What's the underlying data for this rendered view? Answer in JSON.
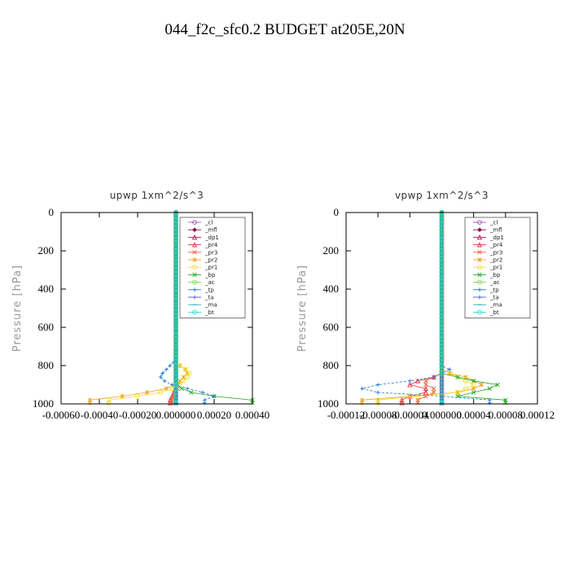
{
  "title": "044_f2c_sfc0.2  BUDGET at205E,20N",
  "legend_labels": [
    "_cl",
    "_mfl",
    "_dp1",
    "_pr4",
    "_pr3",
    "_pr2",
    "_pr1",
    "_bp",
    "_ac",
    "_tp",
    "_ta",
    "_ma",
    "_bt"
  ],
  "series_colors": [
    "#9b59b6",
    "#8b0a50",
    "#b0185a",
    "#e03040",
    "#e8603c",
    "#f0a020",
    "#f0e020",
    "#22aa22",
    "#66dd44",
    "#2277cc",
    "#4455dd",
    "#22aacc",
    "#22dddd"
  ],
  "chart_data": [
    {
      "type": "line",
      "title": "upwp   1xm^2/s^3",
      "ylabel": "Pressure [hPa]",
      "xlabel": "",
      "xlim": [
        -0.0006,
        0.0004
      ],
      "ylim": [
        1000,
        0
      ],
      "xticks": [
        "-0.00060",
        "-0.00040",
        "-0.00020",
        "0.000000",
        "0.00020",
        "0.00040"
      ],
      "yticks": [
        "0",
        "200",
        "400",
        "600",
        "800",
        "1000"
      ],
      "grid": false,
      "legend_position": "top-right",
      "pressure": [
        980,
        960,
        940,
        920,
        900,
        880,
        860,
        840,
        820,
        800,
        780,
        760
      ],
      "series": [
        {
          "name": "_cl",
          "values": [
            0,
            0,
            0,
            0,
            0,
            0,
            0,
            0,
            0,
            0,
            0,
            0
          ]
        },
        {
          "name": "_mfl",
          "values": [
            0,
            0,
            0,
            0,
            0,
            0,
            0,
            0,
            0,
            0,
            0,
            0
          ]
        },
        {
          "name": "_dp1",
          "values": [
            0,
            0,
            0,
            0,
            0,
            0,
            0,
            0,
            0,
            0,
            0,
            0
          ]
        },
        {
          "name": "_pr4",
          "values": [
            -3e-05,
            -2e-05,
            -1e-05,
            0,
            0,
            0,
            0,
            0,
            0,
            0,
            0,
            0
          ]
        },
        {
          "name": "_pr3",
          "values": [
            -2e-05,
            -1e-05,
            -1e-05,
            1e-05,
            0,
            0,
            0,
            0,
            0,
            0,
            0,
            0
          ]
        },
        {
          "name": "_pr2",
          "values": [
            -0.00045,
            -0.00028,
            -0.00015,
            -5e-05,
            0,
            2e-05,
            4e-05,
            6e-05,
            5e-05,
            2e-05,
            0,
            0
          ]
        },
        {
          "name": "_pr1",
          "values": [
            -0.00035,
            -0.0002,
            -8e-05,
            -2e-05,
            2e-05,
            4e-05,
            6e-05,
            7e-05,
            5e-05,
            2e-05,
            0,
            0
          ]
        },
        {
          "name": "_bp",
          "values": [
            0.0004,
            0.0002,
            8e-05,
            3e-05,
            1e-05,
            0,
            0,
            0,
            0,
            0,
            0,
            0
          ]
        },
        {
          "name": "_ac",
          "values": [
            0,
            0,
            0,
            0,
            0,
            0,
            0,
            0,
            0,
            0,
            0,
            0
          ]
        },
        {
          "name": "_tp",
          "values": [
            0.00015,
            0.0002,
            0.00014,
            6e-05,
            -2e-05,
            -6e-05,
            -8e-05,
            -7e-05,
            -5e-05,
            -3e-05,
            -1e-05,
            0
          ]
        },
        {
          "name": "_ta",
          "values": [
            0,
            0,
            0,
            0,
            0,
            0,
            0,
            0,
            0,
            0,
            0,
            0
          ]
        },
        {
          "name": "_ma",
          "values": [
            0,
            0,
            0,
            0,
            0,
            0,
            0,
            0,
            0,
            0,
            0,
            0
          ]
        },
        {
          "name": "_bt",
          "values": [
            0,
            0,
            0,
            0,
            0,
            0,
            0,
            0,
            0,
            0,
            0,
            0
          ]
        }
      ]
    },
    {
      "type": "line",
      "title": "vpwp   1xm^2/s^3",
      "ylabel": "Pressure [hPa]",
      "xlabel": "",
      "xlim": [
        -0.00012,
        0.00012
      ],
      "ylim": [
        1000,
        0
      ],
      "xticks": [
        "-0.00012",
        "-0.00008",
        "-0.00004",
        "0.000000",
        "0.00004",
        "0.00008",
        "0.00012"
      ],
      "yticks": [
        "0",
        "200",
        "400",
        "600",
        "800",
        "1000"
      ],
      "grid": false,
      "legend_position": "top-right",
      "pressure": [
        980,
        960,
        940,
        920,
        900,
        880,
        860,
        840,
        820,
        800,
        780,
        760
      ],
      "series": [
        {
          "name": "_cl",
          "values": [
            0,
            0,
            0,
            0,
            0,
            0,
            0,
            0,
            0,
            0,
            0,
            0
          ]
        },
        {
          "name": "_mfl",
          "values": [
            0,
            0,
            0,
            0,
            0,
            0,
            0,
            0,
            0,
            0,
            0,
            0
          ]
        },
        {
          "name": "_dp1",
          "values": [
            0,
            0,
            0,
            0,
            0,
            0,
            0,
            0,
            0,
            0,
            0,
            0
          ]
        },
        {
          "name": "_pr4",
          "values": [
            -5e-05,
            -4e-05,
            -2e-05,
            -2e-05,
            -4e-05,
            -3e-05,
            -1e-05,
            0,
            0,
            0,
            0,
            0
          ]
        },
        {
          "name": "_pr3",
          "values": [
            -3e-05,
            -2e-05,
            -1e-05,
            -1e-05,
            -2e-05,
            -2e-05,
            -1e-05,
            0,
            0,
            0,
            0,
            0
          ]
        },
        {
          "name": "_pr2",
          "values": [
            -0.0001,
            -4e-05,
            2e-05,
            4e-05,
            5e-05,
            4e-05,
            3e-05,
            1e-05,
            0,
            0,
            0,
            0
          ]
        },
        {
          "name": "_pr1",
          "values": [
            -8e-05,
            -3e-05,
            2e-05,
            3e-05,
            4e-05,
            3e-05,
            2e-05,
            1e-05,
            0,
            0,
            0,
            0
          ]
        },
        {
          "name": "_bp",
          "values": [
            8e-05,
            2e-05,
            4e-05,
            6e-05,
            7e-05,
            4e-05,
            2e-05,
            0,
            0,
            0,
            0,
            0
          ]
        },
        {
          "name": "_ac",
          "values": [
            0,
            0,
            0,
            0,
            0,
            0,
            0,
            0,
            0,
            0,
            0,
            0
          ]
        },
        {
          "name": "_tp",
          "values": [
            6e-05,
            0,
            -8e-05,
            -0.0001,
            -8e-05,
            -4e-05,
            -1e-05,
            0,
            1e-05,
            0,
            0,
            0
          ]
        },
        {
          "name": "_ta",
          "values": [
            0,
            0,
            0,
            0,
            0,
            0,
            0,
            0,
            0,
            0,
            0,
            0
          ]
        },
        {
          "name": "_ma",
          "values": [
            0,
            0,
            0,
            0,
            0,
            0,
            0,
            0,
            0,
            0,
            0,
            0
          ]
        },
        {
          "name": "_bt",
          "values": [
            0,
            0,
            0,
            0,
            0,
            0,
            0,
            0,
            0,
            0,
            0,
            0
          ]
        }
      ]
    }
  ]
}
